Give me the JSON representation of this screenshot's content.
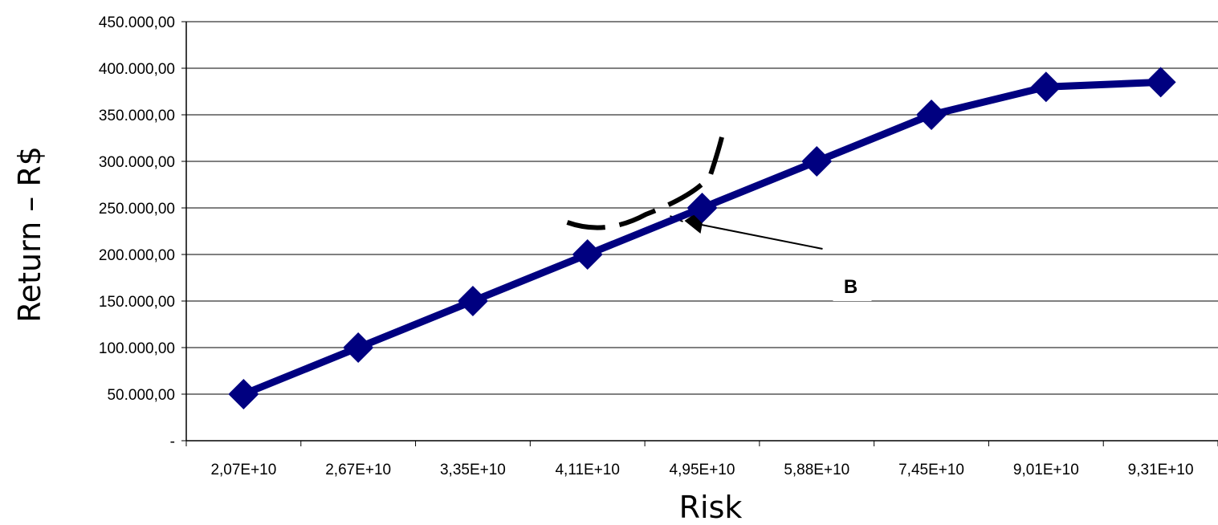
{
  "chart_data": {
    "type": "line",
    "title": "",
    "xlabel": "Risk",
    "ylabel": "Return – R$",
    "categories": [
      "2,07E+10",
      "2,67E+10",
      "3,35E+10",
      "4,11E+10",
      "4,95E+10",
      "5,88E+10",
      "7,45E+10",
      "9,01E+10",
      "9,31E+10"
    ],
    "series": [
      {
        "values": [
          50000,
          100000,
          150000,
          200000,
          250000,
          300000,
          350000,
          380000,
          385000
        ],
        "color": "#000080",
        "marker": "diamond"
      }
    ],
    "ylim": [
      0,
      450000
    ],
    "yticks": [
      0,
      50000,
      100000,
      150000,
      200000,
      250000,
      300000,
      350000,
      400000,
      450000
    ],
    "ytick_labels": [
      "-",
      "50.000,00",
      "100.000,00",
      "150.000,00",
      "200.000,00",
      "250.000,00",
      "300.000,00",
      "350.000,00",
      "400.000,00",
      "450.000,00"
    ],
    "grid": "horizontal",
    "legend": "none",
    "annotations": [
      {
        "label": "B",
        "points_to_category": "4,95E+10"
      }
    ]
  }
}
